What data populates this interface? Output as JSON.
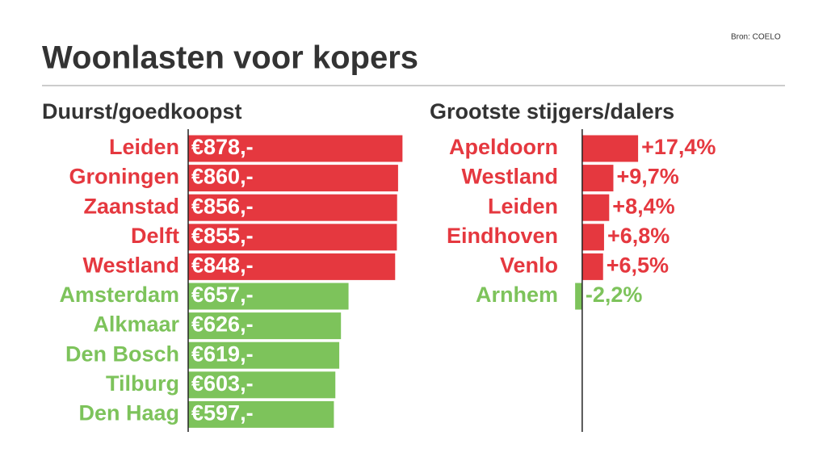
{
  "title": "Woonlasten voor kopers",
  "source": "Bron: COELO",
  "chart_data": [
    {
      "type": "bar",
      "orientation": "horizontal",
      "title": "Duurst/goedkoopst",
      "categories": [
        "Leiden",
        "Groningen",
        "Zaanstad",
        "Delft",
        "Westland",
        "Amsterdam",
        "Alkmaar",
        "Den Bosch",
        "Tilburg",
        "Den Haag"
      ],
      "values": [
        878,
        860,
        856,
        855,
        848,
        657,
        626,
        619,
        603,
        597
      ],
      "value_labels": [
        "€878,-",
        "€860,-",
        "€856,-",
        "€855,-",
        "€848,-",
        "€657,-",
        "€626,-",
        "€619,-",
        "€603,-",
        "€597,-"
      ],
      "colors": [
        "#e5383f",
        "#e5383f",
        "#e5383f",
        "#e5383f",
        "#e5383f",
        "#7dc35b",
        "#7dc35b",
        "#7dc35b",
        "#7dc35b",
        "#7dc35b"
      ],
      "xlim": [
        0,
        900
      ],
      "label_position": "inside"
    },
    {
      "type": "bar",
      "orientation": "horizontal",
      "title": "Grootste stijgers/dalers",
      "categories": [
        "Apeldoorn",
        "Westland",
        "Leiden",
        "Eindhoven",
        "Venlo",
        "Arnhem"
      ],
      "values": [
        17.4,
        9.7,
        8.4,
        6.8,
        6.5,
        -2.2
      ],
      "value_labels": [
        "+17,4%",
        "+9,7%",
        "+8,4%",
        "+6,8%",
        "+6,5%",
        "-2,2%"
      ],
      "colors": [
        "#e5383f",
        "#e5383f",
        "#e5383f",
        "#e5383f",
        "#e5383f",
        "#7dc35b"
      ],
      "xlim": [
        -5,
        40
      ],
      "label_position": "outside"
    }
  ]
}
